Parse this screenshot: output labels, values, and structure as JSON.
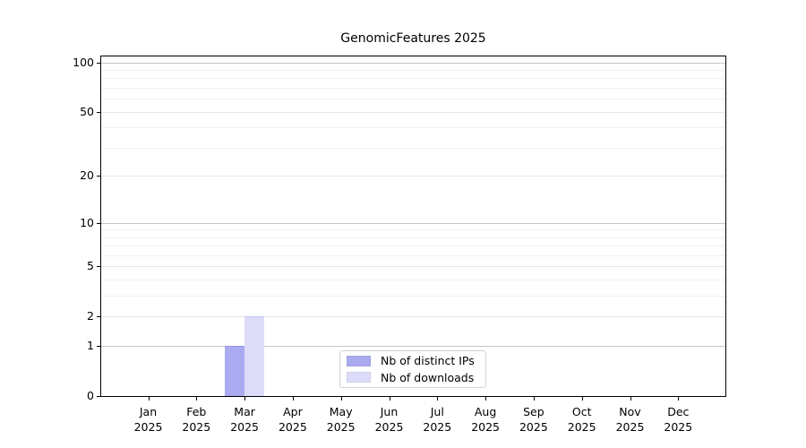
{
  "chart_data": {
    "type": "bar",
    "title": "GenomicFeatures 2025",
    "categories": [
      "Jan",
      "Feb",
      "Mar",
      "Apr",
      "May",
      "Jun",
      "Jul",
      "Aug",
      "Sep",
      "Oct",
      "Nov",
      "Dec"
    ],
    "year_label": "2025",
    "series": [
      {
        "name": "Nb of distinct IPs",
        "color": "#aaaaf0",
        "edge_color": "#9595e6",
        "values": [
          0,
          0,
          1,
          0,
          0,
          0,
          0,
          0,
          0,
          0,
          0,
          0
        ]
      },
      {
        "name": "Nb of downloads",
        "color": "#dcdcf8",
        "edge_color": "#c6c6f2",
        "values": [
          0,
          0,
          2,
          0,
          0,
          0,
          0,
          0,
          0,
          0,
          0,
          0
        ]
      }
    ],
    "yscale": "log1p",
    "ylim": [
      0,
      110
    ],
    "yticks": [
      0,
      1,
      2,
      5,
      10,
      20,
      50,
      100
    ],
    "minor_gridlines": [
      3,
      4,
      6,
      7,
      8,
      9,
      30,
      40,
      60,
      70,
      80,
      90
    ],
    "emphasized_gridlines": [
      1,
      10,
      100
    ],
    "grid": "on",
    "legend_position": "lower center",
    "axis_color": "#000000",
    "background_color": "#ffffff"
  }
}
